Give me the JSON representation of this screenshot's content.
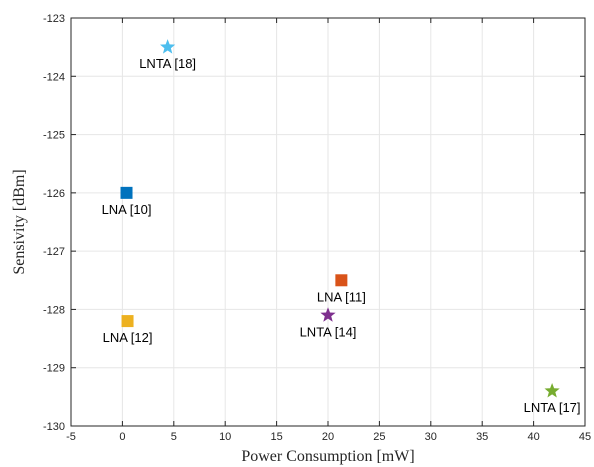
{
  "chart_data": {
    "type": "scatter",
    "title": "",
    "xlabel": "Power Consumption [mW]",
    "ylabel": "Sensivity [dBm]",
    "xlim": [
      -5,
      45
    ],
    "ylim": [
      -130,
      -123
    ],
    "x_ticks": [
      -5,
      0,
      5,
      10,
      15,
      20,
      25,
      30,
      35,
      40,
      45
    ],
    "y_ticks": [
      -123,
      -124,
      -125,
      -126,
      -127,
      -128,
      -129,
      -130
    ],
    "grid": true,
    "points": [
      {
        "label": "LNTA [18]",
        "x": 4.4,
        "y": -123.5,
        "marker": "star",
        "color": "#4DBEEE"
      },
      {
        "label": "LNA [10]",
        "x": 0.4,
        "y": -126.0,
        "marker": "square",
        "color": "#0072BD"
      },
      {
        "label": "LNA [11]",
        "x": 21.3,
        "y": -127.5,
        "marker": "square",
        "color": "#D95319"
      },
      {
        "label": "LNA [12]",
        "x": 0.5,
        "y": -128.2,
        "marker": "square",
        "color": "#EDB120"
      },
      {
        "label": "LNTA [14]",
        "x": 20.0,
        "y": -128.1,
        "marker": "star",
        "color": "#7E2F8E"
      },
      {
        "label": "LNTA [17]",
        "x": 41.8,
        "y": -129.4,
        "marker": "star",
        "color": "#77AC30"
      }
    ]
  }
}
